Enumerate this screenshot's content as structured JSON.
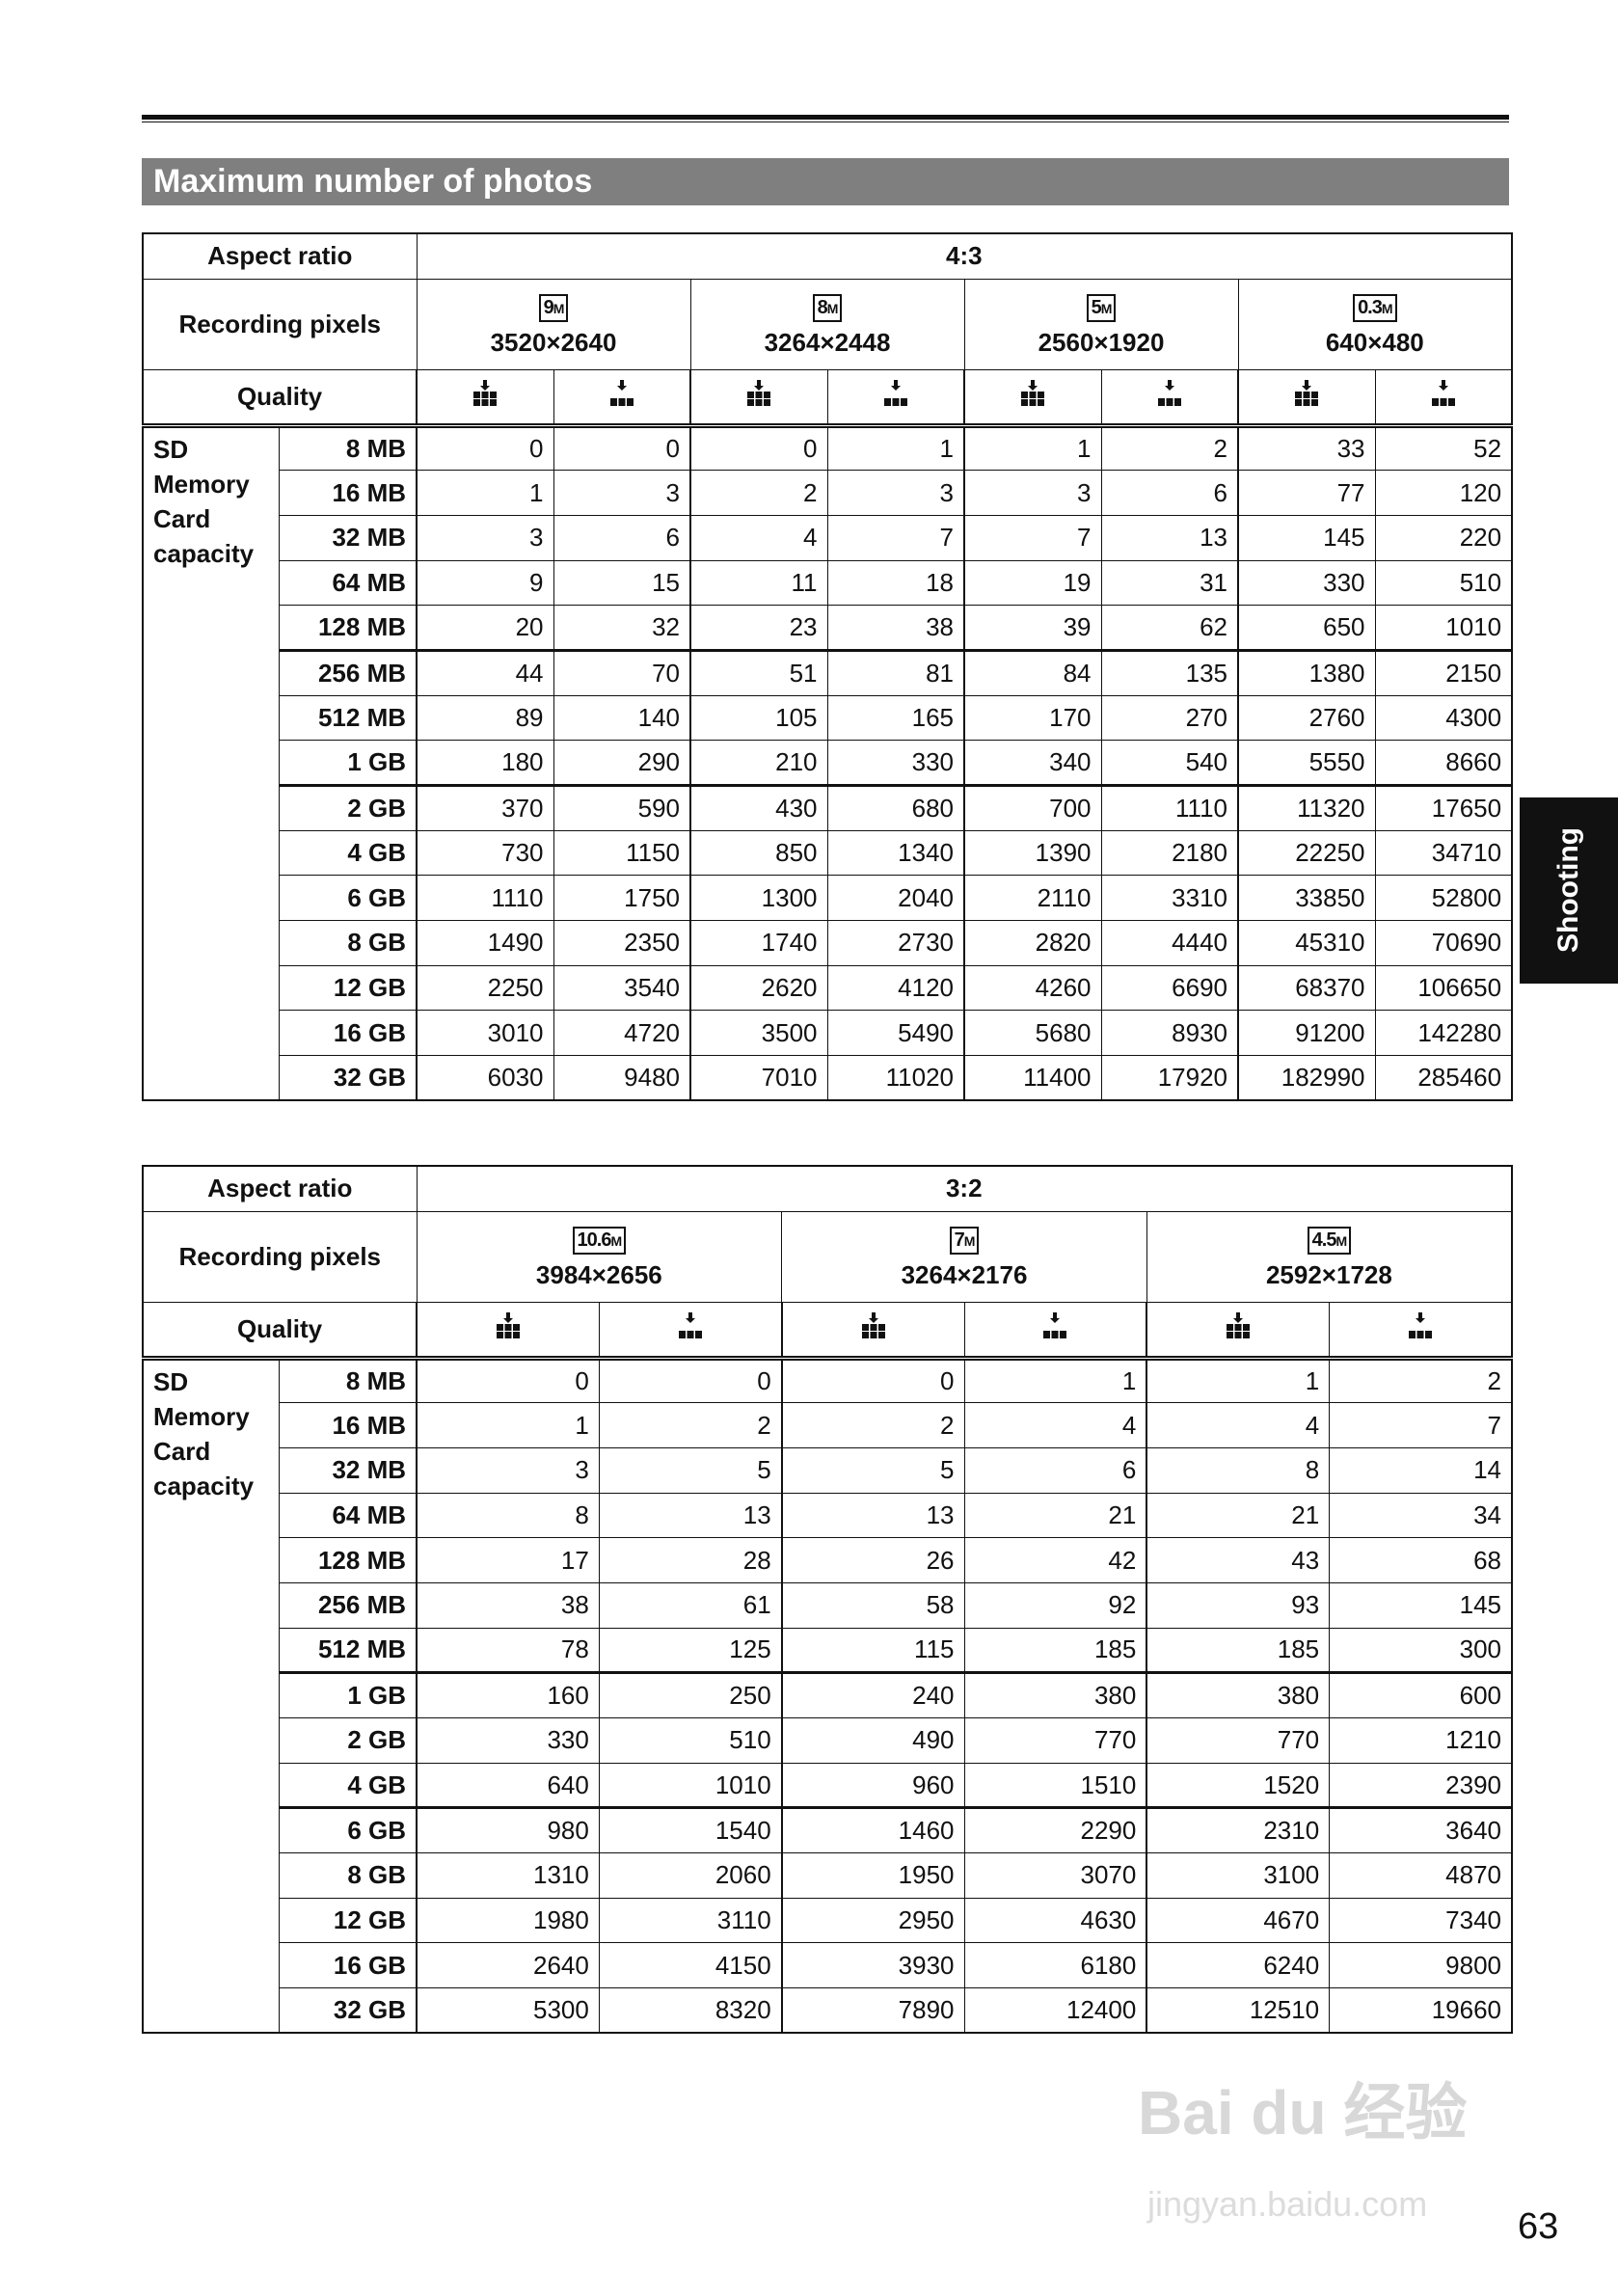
{
  "section_title": "Maximum number of photos",
  "side_tab": "Shooting",
  "page_number": "63",
  "watermark": {
    "logo": "Bai du 经验",
    "url": "jingyan.baidu.com"
  },
  "labels": {
    "aspect_ratio": "Aspect ratio",
    "recording_pixels": "Recording pixels",
    "quality": "Quality",
    "group": [
      "SD",
      "Memory",
      "Card",
      "capacity"
    ]
  },
  "quality_icons": [
    "quality-fine-icon",
    "quality-standard-icon"
  ],
  "tables": [
    {
      "aspect": "4:3",
      "resolutions": [
        {
          "badge": "9",
          "unit": "M",
          "pixels": "3520×2640"
        },
        {
          "badge": "8",
          "unit": "M",
          "pixels": "3264×2448"
        },
        {
          "badge": "5",
          "unit": "M",
          "pixels": "2560×1920"
        },
        {
          "badge": "0.3",
          "unit": "M",
          "pixels": "640×480"
        }
      ],
      "thick_after": [
        "128 MB",
        "1 GB"
      ],
      "rows": [
        {
          "size": "8 MB",
          "values": [
            "0",
            "0",
            "0",
            "1",
            "1",
            "2",
            "33",
            "52"
          ]
        },
        {
          "size": "16 MB",
          "values": [
            "1",
            "3",
            "2",
            "3",
            "3",
            "6",
            "77",
            "120"
          ]
        },
        {
          "size": "32 MB",
          "values": [
            "3",
            "6",
            "4",
            "7",
            "7",
            "13",
            "145",
            "220"
          ]
        },
        {
          "size": "64 MB",
          "values": [
            "9",
            "15",
            "11",
            "18",
            "19",
            "31",
            "330",
            "510"
          ]
        },
        {
          "size": "128 MB",
          "values": [
            "20",
            "32",
            "23",
            "38",
            "39",
            "62",
            "650",
            "1010"
          ]
        },
        {
          "size": "256 MB",
          "values": [
            "44",
            "70",
            "51",
            "81",
            "84",
            "135",
            "1380",
            "2150"
          ]
        },
        {
          "size": "512 MB",
          "values": [
            "89",
            "140",
            "105",
            "165",
            "170",
            "270",
            "2760",
            "4300"
          ]
        },
        {
          "size": "1 GB",
          "values": [
            "180",
            "290",
            "210",
            "330",
            "340",
            "540",
            "5550",
            "8660"
          ]
        },
        {
          "size": "2 GB",
          "values": [
            "370",
            "590",
            "430",
            "680",
            "700",
            "1110",
            "11320",
            "17650"
          ]
        },
        {
          "size": "4 GB",
          "values": [
            "730",
            "1150",
            "850",
            "1340",
            "1390",
            "2180",
            "22250",
            "34710"
          ]
        },
        {
          "size": "6 GB",
          "values": [
            "1110",
            "1750",
            "1300",
            "2040",
            "2110",
            "3310",
            "33850",
            "52800"
          ]
        },
        {
          "size": "8 GB",
          "values": [
            "1490",
            "2350",
            "1740",
            "2730",
            "2820",
            "4440",
            "45310",
            "70690"
          ]
        },
        {
          "size": "12 GB",
          "values": [
            "2250",
            "3540",
            "2620",
            "4120",
            "4260",
            "6690",
            "68370",
            "106650"
          ]
        },
        {
          "size": "16 GB",
          "values": [
            "3010",
            "4720",
            "3500",
            "5490",
            "5680",
            "8930",
            "91200",
            "142280"
          ]
        },
        {
          "size": "32 GB",
          "values": [
            "6030",
            "9480",
            "7010",
            "11020",
            "11400",
            "17920",
            "182990",
            "285460"
          ]
        }
      ]
    },
    {
      "aspect": "3:2",
      "resolutions": [
        {
          "badge": "10.6",
          "unit": "M",
          "pixels": "3984×2656"
        },
        {
          "badge": "7",
          "unit": "M",
          "pixels": "3264×2176"
        },
        {
          "badge": "4.5",
          "unit": "M",
          "pixels": "2592×1728"
        }
      ],
      "thick_after": [
        "512 MB",
        "4 GB"
      ],
      "rows": [
        {
          "size": "8 MB",
          "values": [
            "0",
            "0",
            "0",
            "1",
            "1",
            "2"
          ]
        },
        {
          "size": "16 MB",
          "values": [
            "1",
            "2",
            "2",
            "4",
            "4",
            "7"
          ]
        },
        {
          "size": "32 MB",
          "values": [
            "3",
            "5",
            "5",
            "6",
            "8",
            "14"
          ]
        },
        {
          "size": "64 MB",
          "values": [
            "8",
            "13",
            "13",
            "21",
            "21",
            "34"
          ]
        },
        {
          "size": "128 MB",
          "values": [
            "17",
            "28",
            "26",
            "42",
            "43",
            "68"
          ]
        },
        {
          "size": "256 MB",
          "values": [
            "38",
            "61",
            "58",
            "92",
            "93",
            "145"
          ]
        },
        {
          "size": "512 MB",
          "values": [
            "78",
            "125",
            "115",
            "185",
            "185",
            "300"
          ]
        },
        {
          "size": "1 GB",
          "values": [
            "160",
            "250",
            "240",
            "380",
            "380",
            "600"
          ]
        },
        {
          "size": "2 GB",
          "values": [
            "330",
            "510",
            "490",
            "770",
            "770",
            "1210"
          ]
        },
        {
          "size": "4 GB",
          "values": [
            "640",
            "1010",
            "960",
            "1510",
            "1520",
            "2390"
          ]
        },
        {
          "size": "6 GB",
          "values": [
            "980",
            "1540",
            "1460",
            "2290",
            "2310",
            "3640"
          ]
        },
        {
          "size": "8 GB",
          "values": [
            "1310",
            "2060",
            "1950",
            "3070",
            "3100",
            "4870"
          ]
        },
        {
          "size": "12 GB",
          "values": [
            "1980",
            "3110",
            "2950",
            "4630",
            "4670",
            "7340"
          ]
        },
        {
          "size": "16 GB",
          "values": [
            "2640",
            "4150",
            "3930",
            "6180",
            "6240",
            "9800"
          ]
        },
        {
          "size": "32 GB",
          "values": [
            "5300",
            "8320",
            "7890",
            "12400",
            "12510",
            "19660"
          ]
        }
      ]
    }
  ]
}
